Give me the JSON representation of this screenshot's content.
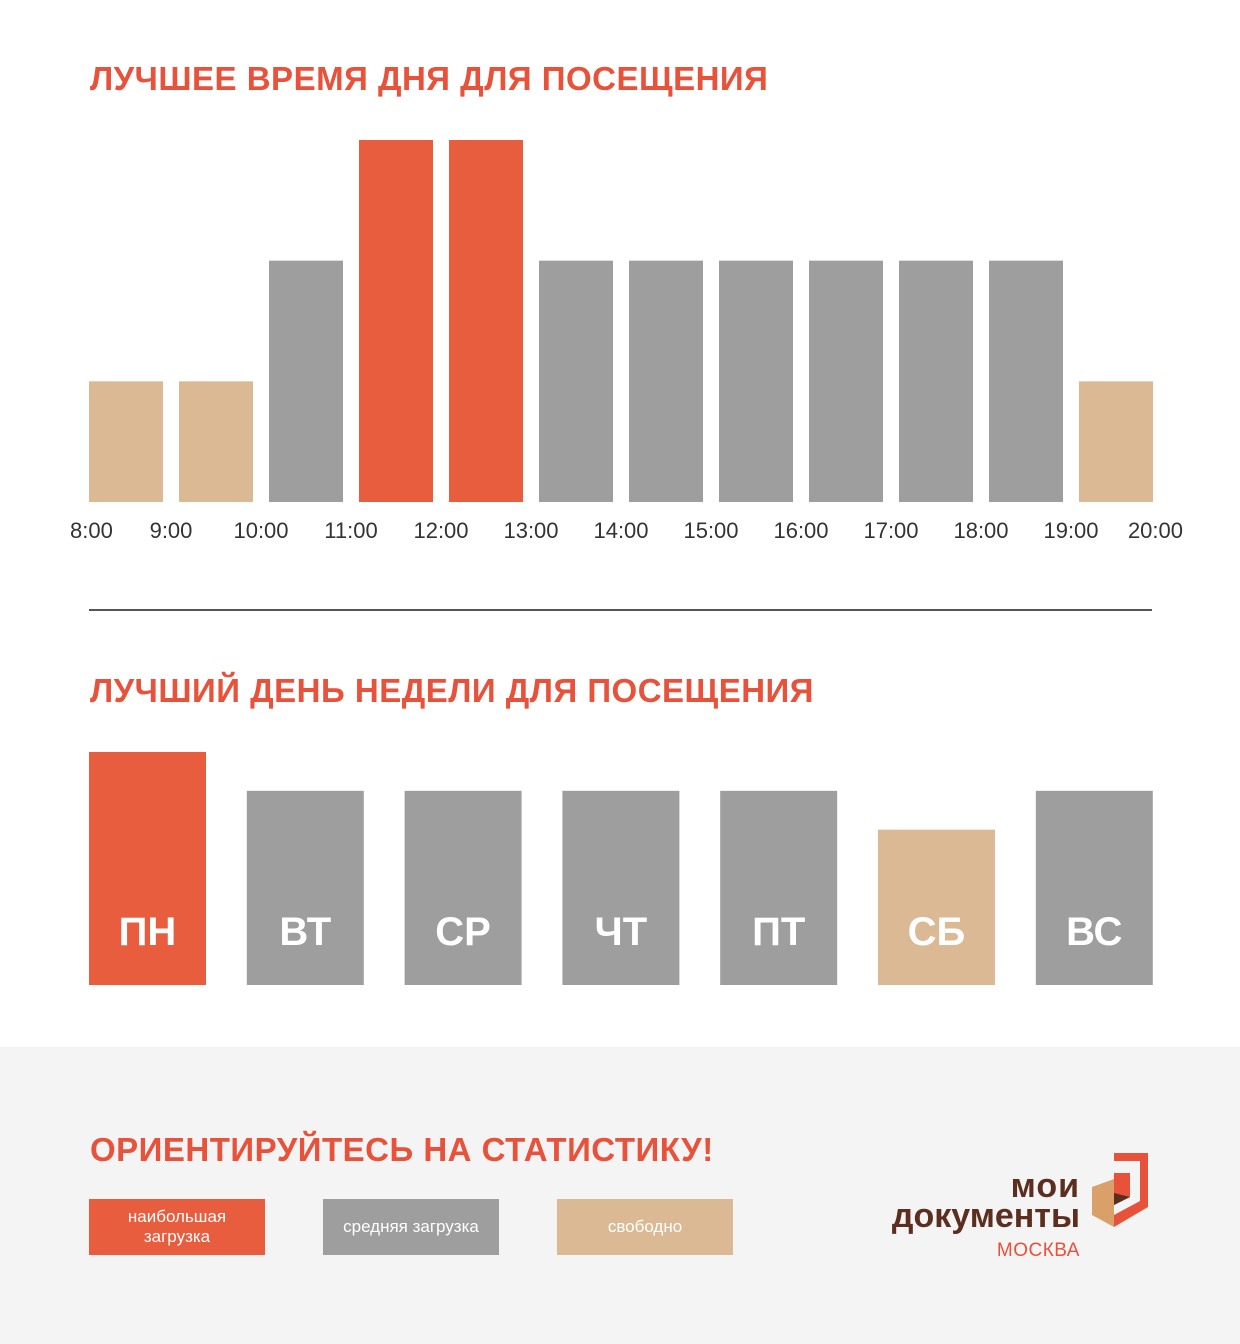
{
  "colors": {
    "busiest": "#e85d3e",
    "average": "#9e9e9e",
    "free": "#dbb994",
    "title": "#e8513a",
    "axis_text": "#333333",
    "logo_text": "#5b2e1f",
    "logo_city": "#e8513a"
  },
  "hours_section": {
    "title": "ЛУЧШЕЕ ВРЕМЯ ДНЯ ДЛЯ ПОСЕЩЕНИЯ"
  },
  "days_section": {
    "title": "ЛУЧШИЙ ДЕНЬ НЕДЕЛИ ДЛЯ ПОСЕЩЕНИЯ"
  },
  "footer": {
    "title": "ОРИЕНТИРУЙТЕСЬ НА СТАТИСТИКУ!",
    "legend": {
      "busiest": "наибольшая загрузка",
      "average": "средняя загрузка",
      "free": "свободно"
    },
    "logo": {
      "line1": "мои",
      "line2": "документы",
      "city": "МОСКВА",
      "icon": "moi-dokumenty-logo-icon"
    }
  },
  "chart_data": [
    {
      "type": "bar",
      "title": "ЛУЧШЕЕ ВРЕМЯ ДНЯ ДЛЯ ПОСЕЩЕНИЯ",
      "tick_labels": [
        "8:00",
        "9:00",
        "10:00",
        "11:00",
        "12:00",
        "13:00",
        "14:00",
        "15:00",
        "16:00",
        "17:00",
        "18:00",
        "19:00",
        "20:00"
      ],
      "categories": [
        "8:00–9:00",
        "9:00–10:00",
        "10:00–11:00",
        "11:00–12:00",
        "12:00–13:00",
        "13:00–14:00",
        "14:00–15:00",
        "15:00–16:00",
        "16:00–17:00",
        "17:00–18:00",
        "18:00–19:00",
        "19:00–20:00"
      ],
      "values": [
        1,
        1,
        2,
        3,
        3,
        2,
        2,
        2,
        2,
        2,
        2,
        1
      ],
      "levels": [
        "free",
        "free",
        "average",
        "busiest",
        "busiest",
        "average",
        "average",
        "average",
        "average",
        "average",
        "average",
        "free"
      ],
      "ylim": [
        0,
        3
      ],
      "grid": false
    },
    {
      "type": "bar",
      "title": "ЛУЧШИЙ ДЕНЬ НЕДЕЛИ ДЛЯ ПОСЕЩЕНИЯ",
      "categories": [
        "ПН",
        "ВТ",
        "СР",
        "ЧТ",
        "ПТ",
        "СБ",
        "ВС"
      ],
      "values": [
        3,
        2.5,
        2.5,
        2.5,
        2.5,
        2,
        2.5
      ],
      "levels": [
        "busiest",
        "average",
        "average",
        "average",
        "average",
        "free",
        "average"
      ],
      "ylim": [
        0,
        3
      ],
      "grid": false
    }
  ]
}
